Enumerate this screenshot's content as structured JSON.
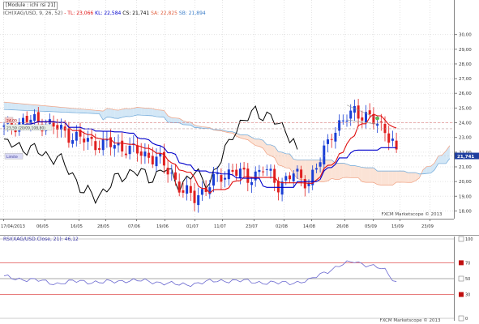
{
  "main_panel": {
    "module_label": "[Module : ichi rsi 21]",
    "indicator_line": {
      "prefix": "ICH(XAG/USD, 9, 26, 52)",
      "tl": "- TL: 23,066",
      "kl": "KL: 22,584",
      "cs": "CS: 21,741",
      "sa": "SA: 22,825",
      "sb": "SB: 21,894"
    },
    "left_markers": [
      "24,00",
      "23,59 (20/09,108,80)",
      "Limite"
    ],
    "last_price": "21,741",
    "watermark": "FXCM Marketscope © 2013",
    "y_ticks": [
      "30,00",
      "29,00",
      "28,00",
      "27,00",
      "26,00",
      "25,00",
      "24,00",
      "23,00",
      "22,00",
      "21,00",
      "20,00",
      "19,00",
      "18,00"
    ],
    "ylim": [
      17.5,
      31.0
    ],
    "x_ticks": [
      "17/04/2013",
      "06/05",
      "16/05",
      "28/05",
      "07/06",
      "19/06",
      "01/07",
      "11/07",
      "23/07",
      "02/08",
      "14/08",
      "26/08",
      "05/09",
      "15/09",
      "23/09"
    ]
  },
  "rsi_panel": {
    "label": "RSI(XAG/USD.Close, 21): 46,12",
    "watermark": "FXCM Marketscope © 2013",
    "levels": [
      "100",
      "70",
      "50",
      "30",
      "0"
    ]
  },
  "colors": {
    "up_candle": "#1a3fd6",
    "down_candle": "#e02020",
    "tenkan": "#e01010",
    "kijun": "#0000cc",
    "chikou": "#000000",
    "kumo_bearish": "#fbe3d6",
    "kumo_bullish": "#d3e7f6",
    "rsi_line": "#6a68d0",
    "level_red": "#e05050"
  }
}
